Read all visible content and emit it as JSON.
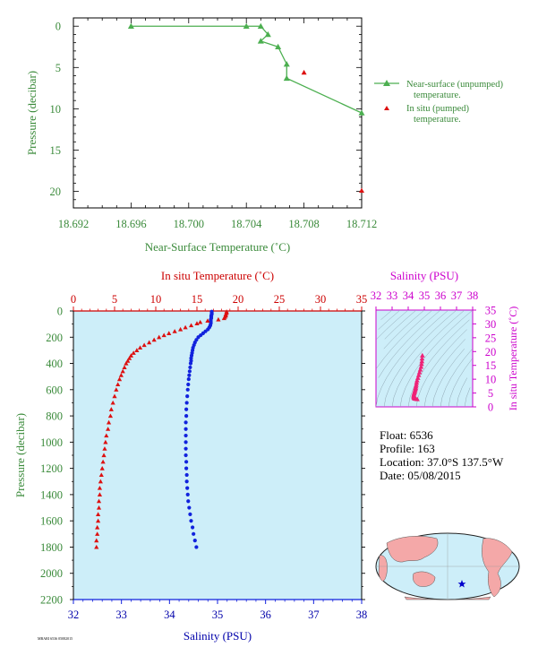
{
  "colors": {
    "green": "#4caf50",
    "green_text": "#3a8a3a",
    "red": "#dd1111",
    "blue": "#1122dd",
    "magenta": "#cc00cc",
    "pink": "#ee2277",
    "panel_bg": "#cdeef9",
    "map_land": "#f4a8a8",
    "map_ocean": "#cdeef9",
    "map_star": "#0000cc"
  },
  "float_info": {
    "float_line": "Float:  6536",
    "profile_line": "Profile:  163",
    "location_line": "Location:  37.0°S  137.5°W",
    "date_line": "Date:  05/08/2015"
  },
  "footer_code": "MBARI 6536 05082015",
  "chart_data": [
    {
      "id": "near-surface",
      "type": "scatter",
      "xlabel": "Near-Surface Temperature (˚C)",
      "ylabel": "Pressure (decibar)",
      "xlim": [
        18.692,
        18.712
      ],
      "ylim": [
        22,
        -1
      ],
      "x_ticks": [
        "18.692",
        "18.696",
        "18.700",
        "18.704",
        "18.708",
        "18.712"
      ],
      "y_ticks": [
        "0",
        "5",
        "10",
        "15",
        "20"
      ],
      "legend": {
        "placement": "right",
        "unpumped": "Near-surface (unpumped) temperature.",
        "pumped": "In situ (pumped) temperature."
      },
      "series": [
        {
          "name": "Near-surface (unpumped) temperature.",
          "style": "line-triangle",
          "points": [
            [
              18.696,
              0.0
            ],
            [
              18.704,
              0.0
            ],
            [
              18.705,
              0.0
            ],
            [
              18.7055,
              1.0
            ],
            [
              18.705,
              1.8
            ],
            [
              18.7062,
              2.5
            ],
            [
              18.7068,
              4.6
            ],
            [
              18.7068,
              6.3
            ],
            [
              18.712,
              10.5
            ]
          ]
        },
        {
          "name": "In situ (pumped) temperature.",
          "style": "triangle",
          "points": [
            [
              18.708,
              5.6
            ],
            [
              18.712,
              19.9
            ]
          ]
        }
      ]
    },
    {
      "id": "profile",
      "type": "scatter",
      "x_top_label": "In situ Temperature (˚C)",
      "x_bottom_label": "Salinity (PSU)",
      "ylabel": "Pressure (decibar)",
      "temp_lim": [
        0,
        35
      ],
      "sal_lim": [
        32,
        38
      ],
      "ylim": [
        0,
        2200
      ],
      "temp_ticks": [
        "0",
        "5",
        "10",
        "15",
        "20",
        "25",
        "30",
        "35"
      ],
      "sal_ticks": [
        "32",
        "33",
        "34",
        "35",
        "36",
        "37",
        "38"
      ],
      "y_ticks": [
        "0",
        "200",
        "400",
        "600",
        "800",
        "1000",
        "1200",
        "1400",
        "1600",
        "1800",
        "2000",
        "2200"
      ],
      "temperature": {
        "pressure": [
          5,
          15,
          25,
          35,
          45,
          55,
          65,
          75,
          85,
          95,
          110,
          125,
          140,
          155,
          170,
          185,
          200,
          220,
          240,
          260,
          280,
          300,
          320,
          340,
          360,
          380,
          400,
          430,
          460,
          490,
          520,
          560,
          600,
          650,
          700,
          750,
          800,
          850,
          900,
          950,
          1000,
          1050,
          1100,
          1150,
          1200,
          1250,
          1300,
          1350,
          1400,
          1450,
          1500,
          1550,
          1600,
          1650,
          1700,
          1750,
          1800
        ],
        "values": [
          18.6,
          18.6,
          18.5,
          18.5,
          18.4,
          18.3,
          17.6,
          16.3,
          15.4,
          15.0,
          14.3,
          13.6,
          13.0,
          12.3,
          11.6,
          11.0,
          10.4,
          9.8,
          9.2,
          8.6,
          8.1,
          7.7,
          7.3,
          7.0,
          6.8,
          6.6,
          6.4,
          6.2,
          6.0,
          5.8,
          5.6,
          5.4,
          5.2,
          5.0,
          4.8,
          4.6,
          4.5,
          4.3,
          4.2,
          4.0,
          3.9,
          3.8,
          3.7,
          3.6,
          3.5,
          3.4,
          3.3,
          3.2,
          3.2,
          3.1,
          3.1,
          3.0,
          3.0,
          2.9,
          2.9,
          2.8,
          2.8
        ]
      },
      "salinity": {
        "pressure": [
          5,
          15,
          25,
          35,
          45,
          55,
          65,
          75,
          85,
          95,
          110,
          125,
          140,
          155,
          170,
          185,
          200,
          220,
          240,
          260,
          280,
          300,
          320,
          340,
          360,
          380,
          400,
          430,
          460,
          490,
          520,
          560,
          600,
          650,
          700,
          750,
          800,
          850,
          900,
          950,
          1000,
          1050,
          1100,
          1150,
          1200,
          1250,
          1300,
          1350,
          1400,
          1450,
          1500,
          1550,
          1600,
          1650,
          1700,
          1750,
          1800
        ],
        "values": [
          34.88,
          34.88,
          34.88,
          34.87,
          34.87,
          34.87,
          34.86,
          34.86,
          34.86,
          34.86,
          34.85,
          34.83,
          34.8,
          34.75,
          34.7,
          34.65,
          34.6,
          34.56,
          34.53,
          34.51,
          34.49,
          34.48,
          34.47,
          34.46,
          34.45,
          34.45,
          34.44,
          34.43,
          34.42,
          34.41,
          34.4,
          34.39,
          34.38,
          34.37,
          34.36,
          34.35,
          34.35,
          34.34,
          34.34,
          34.34,
          34.34,
          34.34,
          34.34,
          34.35,
          34.35,
          34.36,
          34.36,
          34.37,
          34.38,
          34.39,
          34.41,
          34.43,
          34.45,
          34.48,
          34.5,
          34.53,
          34.56
        ]
      }
    },
    {
      "id": "ts-diagram",
      "type": "scatter",
      "xlabel": "Salinity (PSU)",
      "ylabel": "In situ Temperature (˚C)",
      "xlim": [
        32,
        38
      ],
      "ylim": [
        0,
        35
      ],
      "x_ticks": [
        "32",
        "33",
        "34",
        "35",
        "36",
        "37",
        "38"
      ],
      "y_ticks": [
        "0",
        "5",
        "10",
        "15",
        "20",
        "25",
        "30",
        "35"
      ],
      "points": [
        [
          34.88,
          18.6
        ],
        [
          34.86,
          17.5
        ],
        [
          34.85,
          16.5
        ],
        [
          34.83,
          15.5
        ],
        [
          34.8,
          14.5
        ],
        [
          34.75,
          13.5
        ],
        [
          34.7,
          12.5
        ],
        [
          34.65,
          11.5
        ],
        [
          34.6,
          10.5
        ],
        [
          34.55,
          9.6
        ],
        [
          34.52,
          8.8
        ],
        [
          34.5,
          8.0
        ],
        [
          34.48,
          7.4
        ],
        [
          34.46,
          6.9
        ],
        [
          34.45,
          6.5
        ],
        [
          34.43,
          6.1
        ],
        [
          34.41,
          5.7
        ],
        [
          34.39,
          5.3
        ],
        [
          34.37,
          4.9
        ],
        [
          34.35,
          4.5
        ],
        [
          34.34,
          4.1
        ],
        [
          34.34,
          3.7
        ],
        [
          34.35,
          3.4
        ],
        [
          34.37,
          3.2
        ],
        [
          34.41,
          3.0
        ],
        [
          34.47,
          2.9
        ],
        [
          34.56,
          2.8
        ]
      ]
    }
  ]
}
